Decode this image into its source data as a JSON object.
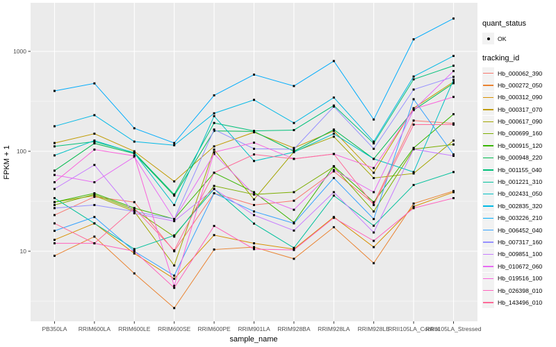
{
  "colors": {
    "panel_bg": "#EBEBEB",
    "grid": "#FFFFFF",
    "tick_label": "#4D4D4D",
    "tick_mark": "#333333",
    "point": "#000000",
    "legend_key_bg": "#F2F2F2"
  },
  "legend": {
    "quant_status_title": "quant_status",
    "quant_status_entries": [
      "OK"
    ],
    "tracking_id_title": "tracking_id"
  },
  "chart_data": {
    "type": "line",
    "title": "",
    "xlabel": "sample_name",
    "ylabel": "FPKM + 1",
    "y_scale": "log10",
    "ylim": [
      2,
      3060
    ],
    "y_ticks": [
      10,
      100,
      1000
    ],
    "y_minor_ticks": [
      3.162,
      31.62,
      316.2
    ],
    "grid": true,
    "legend_position": "right",
    "point_shape": "square",
    "categories": [
      "PB350LA",
      "RRIM600LA",
      "RRIM600LE",
      "RRIM600SE",
      "RRIM600PE",
      "RRIM901LA",
      "RRIM928BA",
      "RRIM928LA",
      "RRIM928LE",
      "RRII105LA_Control",
      "RRII105LA_Stressed"
    ],
    "series": [
      {
        "name": "Hb_000062_390",
        "color": "#F8766D",
        "values": [
          23,
          35,
          31,
          10,
          38,
          29,
          32,
          63,
          30,
          203,
          190
        ]
      },
      {
        "name": "Hb_000272_050",
        "color": "#EA8331",
        "values": [
          9,
          14,
          6,
          2.7,
          10.4,
          11,
          8.4,
          17.4,
          7.6,
          30,
          40
        ]
      },
      {
        "name": "Hb_000312_090",
        "color": "#D89000",
        "values": [
          13,
          19,
          9.5,
          5.3,
          14.5,
          12,
          10.5,
          22,
          11,
          28,
          39
        ]
      },
      {
        "name": "Hb_000317_070",
        "color": "#C09B00",
        "values": [
          121,
          150,
          100,
          50,
          112,
          155,
          108,
          160,
          61,
          270,
          495
        ]
      },
      {
        "name": "Hb_000617_090",
        "color": "#A3A500",
        "values": [
          31,
          36,
          25,
          7.2,
          104,
          33,
          99,
          140,
          54,
          60,
          128
        ]
      },
      {
        "name": "Hb_000699_160",
        "color": "#7CAE00",
        "values": [
          29,
          37,
          26,
          14,
          45,
          37,
          39,
          70,
          25,
          105,
          117
        ]
      },
      {
        "name": "Hb_000915_120",
        "color": "#39B600",
        "values": [
          31,
          38,
          27,
          21,
          61,
          39,
          19.4,
          71,
          31,
          108,
          235
        ]
      },
      {
        "name": "Hb_000948_220",
        "color": "#00BB4E",
        "values": [
          64,
          120,
          95,
          36,
          160,
          158,
          100,
          165,
          84,
          258,
          480
        ]
      },
      {
        "name": "Hb_001155_040",
        "color": "#00C079",
        "values": [
          112,
          125,
          97,
          37,
          192,
          160,
          163,
          287,
          120,
          525,
          718
        ]
      },
      {
        "name": "Hb_001221_310",
        "color": "#00C19C",
        "values": [
          34,
          19,
          10.5,
          14.4,
          42,
          18.9,
          10.8,
          36,
          18,
          46,
          62
        ]
      },
      {
        "name": "Hb_002431_050",
        "color": "#00BFC4",
        "values": [
          91,
          128,
          96,
          29,
          225,
          80,
          98,
          150,
          84,
          62,
          520
        ]
      },
      {
        "name": "Hb_002835_320",
        "color": "#00B8E5",
        "values": [
          178,
          230,
          125,
          115,
          240,
          327,
          192,
          345,
          125,
          560,
          900
        ]
      },
      {
        "name": "Hb_003226_210",
        "color": "#00ACFC",
        "values": [
          402,
          478,
          170,
          121,
          363,
          585,
          450,
          800,
          208,
          1320,
          2130
        ]
      },
      {
        "name": "Hb_006452_040",
        "color": "#35A2FF",
        "values": [
          16,
          22,
          10,
          5.7,
          38,
          25,
          19,
          54,
          21,
          332,
          93
        ]
      },
      {
        "name": "Hb_007317_160",
        "color": "#9590FF",
        "values": [
          27,
          29,
          25,
          21,
          165,
          106,
          105,
          280,
          106,
          415,
          556
        ]
      },
      {
        "name": "Hb_009851_100",
        "color": "#C77CFF",
        "values": [
          42,
          73,
          24,
          20,
          42,
          23,
          16.1,
          39,
          15.4,
          105,
          90
        ]
      },
      {
        "name": "Hb_010672_060",
        "color": "#E76BF3",
        "values": [
          58,
          49,
          88,
          21,
          94,
          37,
          26,
          65,
          39,
          260,
          635
        ]
      },
      {
        "name": "Hb_019516_100",
        "color": "#FA62DB",
        "values": [
          49,
          104,
          90,
          4.5,
          98,
          122,
          84,
          94,
          68,
          265,
          350
        ]
      },
      {
        "name": "Hb_026398_010",
        "color": "#FF62BC",
        "values": [
          12,
          12,
          10,
          4.3,
          17.9,
          10.5,
          10.3,
          21.6,
          12.7,
          27,
          34
        ]
      },
      {
        "name": "Hb_143496_010",
        "color": "#FF6A98",
        "values": [
          19,
          12,
          27,
          10.2,
          61,
          93,
          84,
          94,
          29,
          185,
          185
        ]
      }
    ]
  }
}
